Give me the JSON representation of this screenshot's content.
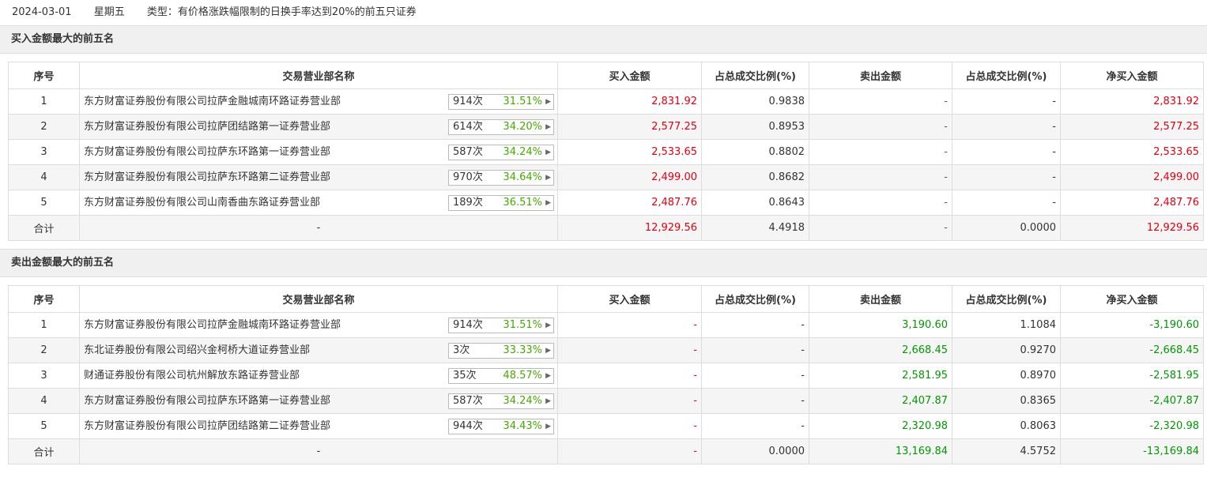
{
  "header": {
    "date": "2024-03-01",
    "weekday": "星期五",
    "type_text": "类型：有价格涨跌幅限制的日换手率达到20%的前五只证券"
  },
  "buy_section": {
    "title": "买入金额最大的前五名",
    "columns": [
      "序号",
      "交易营业部名称",
      "买入金额",
      "占总成交比例(%)",
      "卖出金额",
      "占总成交比例(%)",
      "净买入金额"
    ],
    "rows": [
      {
        "no": "1",
        "name": "东方财富证券股份有限公司拉萨金融城南环路证券营业部",
        "count": "914次",
        "pct": "31.51%",
        "buy": "2,831.92",
        "buy_ratio": "0.9838",
        "sell": "-",
        "sell_ratio": "-",
        "net": "2,831.92"
      },
      {
        "no": "2",
        "name": "东方财富证券股份有限公司拉萨团结路第一证券营业部",
        "count": "614次",
        "pct": "34.20%",
        "buy": "2,577.25",
        "buy_ratio": "0.8953",
        "sell": "-",
        "sell_ratio": "-",
        "net": "2,577.25"
      },
      {
        "no": "3",
        "name": "东方财富证券股份有限公司拉萨东环路第一证券营业部",
        "count": "587次",
        "pct": "34.24%",
        "buy": "2,533.65",
        "buy_ratio": "0.8802",
        "sell": "-",
        "sell_ratio": "-",
        "net": "2,533.65"
      },
      {
        "no": "4",
        "name": "东方财富证券股份有限公司拉萨东环路第二证券营业部",
        "count": "970次",
        "pct": "34.64%",
        "buy": "2,499.00",
        "buy_ratio": "0.8682",
        "sell": "-",
        "sell_ratio": "-",
        "net": "2,499.00"
      },
      {
        "no": "5",
        "name": "东方财富证券股份有限公司山南香曲东路证券营业部",
        "count": "189次",
        "pct": "36.51%",
        "buy": "2,487.76",
        "buy_ratio": "0.8643",
        "sell": "-",
        "sell_ratio": "-",
        "net": "2,487.76"
      }
    ],
    "total": {
      "label": "合计",
      "name": "-",
      "buy": "12,929.56",
      "buy_ratio": "4.4918",
      "sell": "-",
      "sell_ratio": "0.0000",
      "net": "12,929.56"
    }
  },
  "sell_section": {
    "title": "卖出金额最大的前五名",
    "columns": [
      "序号",
      "交易营业部名称",
      "买入金额",
      "占总成交比例(%)",
      "卖出金额",
      "占总成交比例(%)",
      "净买入金额"
    ],
    "rows": [
      {
        "no": "1",
        "name": "东方财富证券股份有限公司拉萨金融城南环路证券营业部",
        "count": "914次",
        "pct": "31.51%",
        "buy": "-",
        "buy_ratio": "-",
        "sell": "3,190.60",
        "sell_ratio": "1.1084",
        "net": "-3,190.60"
      },
      {
        "no": "2",
        "name": "东北证券股份有限公司绍兴金柯桥大道证券营业部",
        "count": "3次",
        "pct": "33.33%",
        "buy": "-",
        "buy_ratio": "-",
        "sell": "2,668.45",
        "sell_ratio": "0.9270",
        "net": "-2,668.45"
      },
      {
        "no": "3",
        "name": "财通证券股份有限公司杭州解放东路证券营业部",
        "count": "35次",
        "pct": "48.57%",
        "buy": "-",
        "buy_ratio": "-",
        "sell": "2,581.95",
        "sell_ratio": "0.8970",
        "net": "-2,581.95"
      },
      {
        "no": "4",
        "name": "东方财富证券股份有限公司拉萨东环路第一证券营业部",
        "count": "587次",
        "pct": "34.24%",
        "buy": "-",
        "buy_ratio": "-",
        "sell": "2,407.87",
        "sell_ratio": "0.8365",
        "net": "-2,407.87"
      },
      {
        "no": "5",
        "name": "东方财富证券股份有限公司拉萨团结路第二证券营业部",
        "count": "944次",
        "pct": "34.43%",
        "buy": "-",
        "buy_ratio": "-",
        "sell": "2,320.98",
        "sell_ratio": "0.8063",
        "net": "-2,320.98"
      }
    ],
    "total": {
      "label": "合计",
      "name": "-",
      "buy": "-",
      "buy_ratio": "0.0000",
      "sell": "13,169.84",
      "sell_ratio": "4.5752",
      "net": "-13,169.84"
    }
  },
  "colors": {
    "up": "#e4000f",
    "down": "#009900",
    "stat_pct": "#44aa00"
  },
  "icons": {
    "stat_arrow": "caret-right-icon"
  }
}
